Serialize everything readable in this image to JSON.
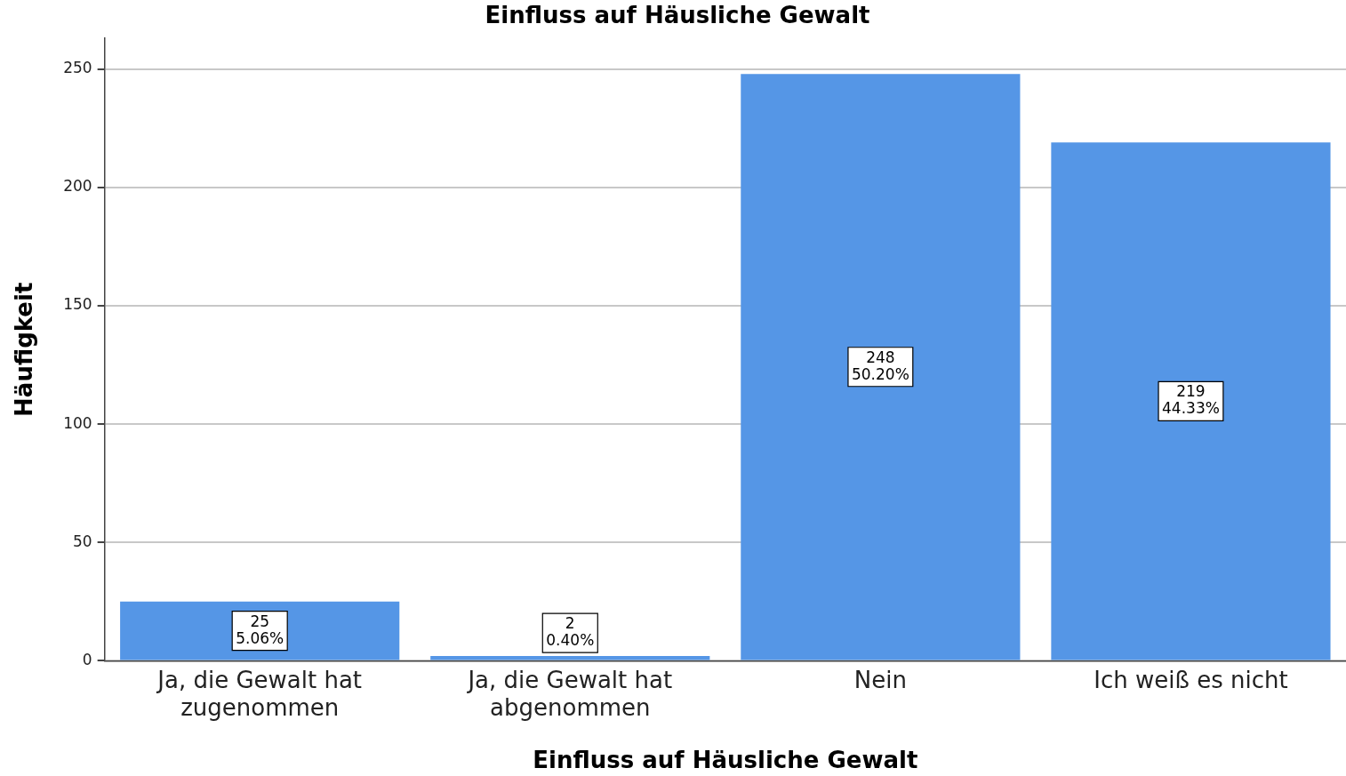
{
  "chart_data": {
    "type": "bar",
    "title": "Einfluss auf Häusliche Gewalt",
    "xlabel": "Einfluss auf Häusliche Gewalt",
    "ylabel": "Häufigkeit",
    "categories": [
      "Ja, die Gewalt hat zugenommen",
      "Ja, die Gewalt hat abgenommen",
      "Nein",
      "Ich weiß es nicht"
    ],
    "values": [
      25,
      2,
      248,
      219
    ],
    "color": "#5596e6",
    "value_labels": [
      "25\n5.06%",
      "2\n0.40%",
      "248\n50.20%",
      "219\n44.33%"
    ],
    "ylim": [
      0,
      263
    ],
    "yticks": [
      0,
      50,
      100,
      150,
      200,
      250
    ],
    "grid": "y",
    "legend": false
  }
}
